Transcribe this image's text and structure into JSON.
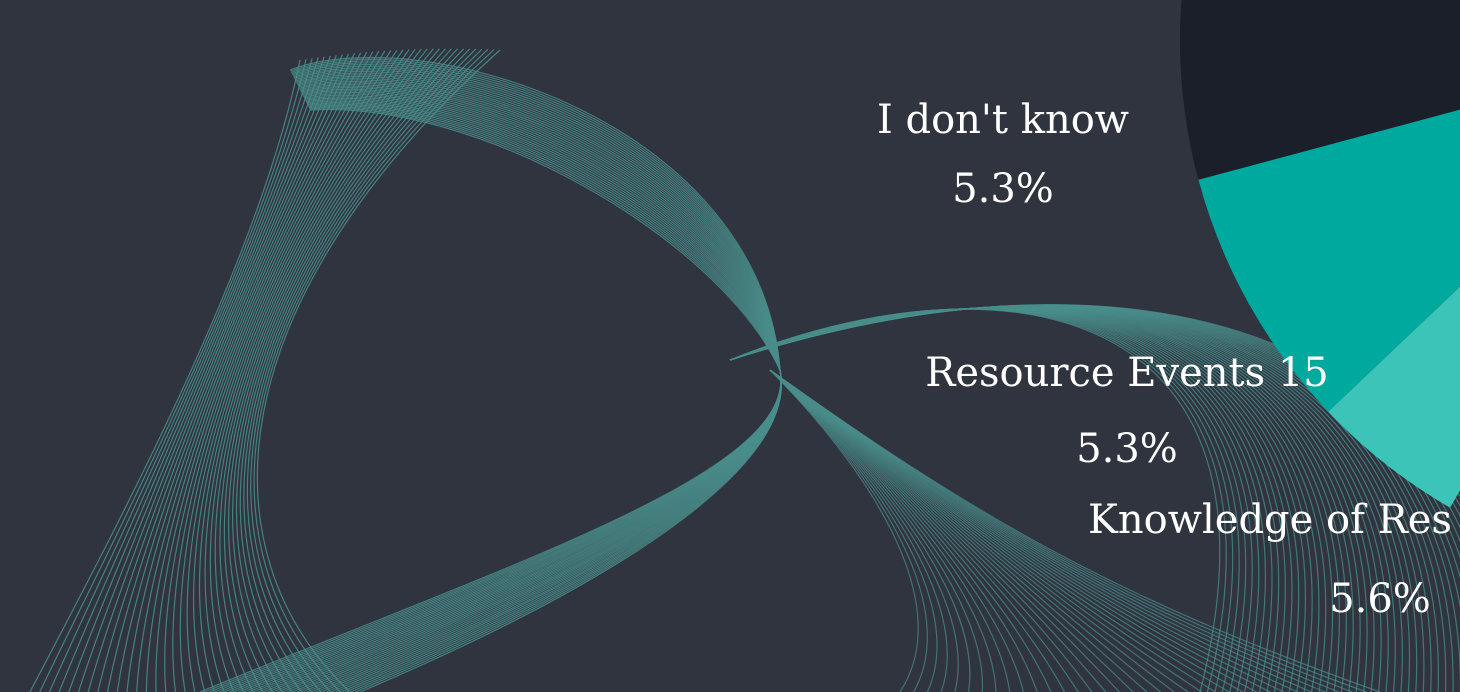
{
  "colors": {
    "background": "#30343f",
    "mesh": "#4a8f8c",
    "pie_backdrop": "#1b1f29",
    "label": "#ffffff"
  },
  "chart_data": {
    "type": "pie",
    "slices": [
      {
        "label": "I don't know",
        "percent_text": "5.3%",
        "value": 5.3,
        "color": "#00a99d"
      },
      {
        "label": "Resource Events 15",
        "percent_text": "5.3%",
        "value": 5.3,
        "color": "#3cc4b9"
      },
      {
        "label": "Knowledge of Res",
        "percent_text": "5.6%",
        "value": 5.6,
        "color": "#2a2f3a"
      }
    ]
  }
}
